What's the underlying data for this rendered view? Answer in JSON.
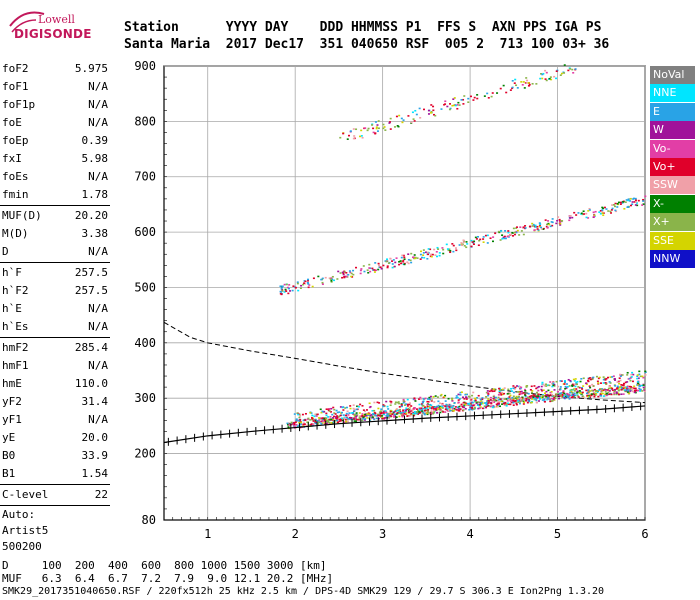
{
  "logo": {
    "line1": "Lowell",
    "line2": "DIGISONDE"
  },
  "header": {
    "row1": "Station      YYYY DAY    DDD HHMMSS P1  FFS S  AXN PPS IGA PS",
    "row2": "Santa Maria  2017 Dec17  351 040650 RSF  005 2  713 100 03+ 36"
  },
  "params_group1": [
    {
      "k": "foF2",
      "v": "5.975"
    },
    {
      "k": "foF1",
      "v": "N/A"
    },
    {
      "k": "foF1p",
      "v": "N/A"
    },
    {
      "k": "foE",
      "v": "N/A"
    },
    {
      "k": "foEp",
      "v": "0.39"
    },
    {
      "k": "fxI",
      "v": "5.98"
    },
    {
      "k": "foEs",
      "v": "N/A"
    },
    {
      "k": "fmin",
      "v": "1.78"
    }
  ],
  "params_group2": [
    {
      "k": "MUF(D)",
      "v": "20.20"
    },
    {
      "k": "M(D)",
      "v": "3.38"
    },
    {
      "k": "D",
      "v": "N/A"
    }
  ],
  "params_group3": [
    {
      "k": "h`F",
      "v": "257.5"
    },
    {
      "k": "h`F2",
      "v": "257.5"
    },
    {
      "k": "h`E",
      "v": "N/A"
    },
    {
      "k": "h`Es",
      "v": "N/A"
    }
  ],
  "params_group4": [
    {
      "k": "hmF2",
      "v": "285.4"
    },
    {
      "k": "hmF1",
      "v": "N/A"
    },
    {
      "k": "hmE",
      "v": "110.0"
    },
    {
      "k": "yF2",
      "v": "31.4"
    },
    {
      "k": "yF1",
      "v": "N/A"
    },
    {
      "k": "yE",
      "v": "20.0"
    },
    {
      "k": "B0",
      "v": "33.9"
    },
    {
      "k": "B1",
      "v": "1.54"
    }
  ],
  "params_group5": [
    {
      "k": "C-level",
      "v": "22"
    }
  ],
  "auto": {
    "line1": "Auto:",
    "line2": "Artist5",
    "line3": "500200"
  },
  "chart_data": {
    "type": "scatter",
    "xlim": [
      0.5,
      6.0
    ],
    "ylim": [
      80,
      900
    ],
    "x_ticks": [
      "1",
      "2",
      "3",
      "4",
      "5",
      "6"
    ],
    "y_ticks": [
      "80",
      "200",
      "300",
      "400",
      "500",
      "600",
      "700",
      "800",
      "900"
    ],
    "grid": true,
    "legend_position": "right",
    "legend": [
      {
        "name": "NoVal",
        "color": "#808080"
      },
      {
        "name": "NNE",
        "color": "#00e5ff"
      },
      {
        "name": "E",
        "color": "#29a3e6"
      },
      {
        "name": "W",
        "color": "#a0129a"
      },
      {
        "name": "Vo-",
        "color": "#e23ea6"
      },
      {
        "name": "Vo+",
        "color": "#e0002a"
      },
      {
        "name": "SSW",
        "color": "#f0a0a8"
      },
      {
        "name": "X-",
        "color": "#008000"
      },
      {
        "name": "X+",
        "color": "#8ab44a"
      },
      {
        "name": "SSE",
        "color": "#d4d400"
      },
      {
        "name": "NNW",
        "color": "#1010c8"
      }
    ],
    "profile_curve": [
      [
        0.5,
        220
      ],
      [
        1.0,
        232
      ],
      [
        1.5,
        240
      ],
      [
        2.0,
        247
      ],
      [
        2.5,
        254
      ],
      [
        3.0,
        259
      ],
      [
        3.5,
        264
      ],
      [
        4.0,
        268
      ],
      [
        4.5,
        272
      ],
      [
        5.0,
        276
      ],
      [
        5.5,
        280
      ],
      [
        6.0,
        286
      ]
    ],
    "dashed_curve": [
      [
        0.5,
        437
      ],
      [
        0.8,
        410
      ],
      [
        1.0,
        400
      ],
      [
        1.5,
        385
      ],
      [
        2.0,
        372
      ],
      [
        2.5,
        358
      ],
      [
        3.0,
        345
      ],
      [
        3.5,
        334
      ],
      [
        4.0,
        322
      ],
      [
        4.5,
        312
      ],
      [
        5.0,
        303
      ],
      [
        5.5,
        297
      ],
      [
        6.0,
        292
      ]
    ],
    "traces": [
      {
        "name": "F2-o",
        "x0": 1.9,
        "x1": 6.0,
        "y0": 253,
        "y1": 320
      },
      {
        "name": "F2-spread",
        "x0": 1.95,
        "x1": 6.0,
        "y0": 262,
        "y1": 338
      },
      {
        "name": "2F2",
        "x0": 1.8,
        "x1": 6.0,
        "y0": 495,
        "y1": 660
      },
      {
        "name": "3F2",
        "x0": 2.5,
        "x1": 5.2,
        "y0": 770,
        "y1": 900
      }
    ]
  },
  "bottom": {
    "row1": "D     100  200  400  600  800 1000 1500 3000 [km]",
    "row2": "MUF   6.3  6.4  6.7  7.2  7.9  9.0 12.1 20.2 [MHz]",
    "row3": "SMK29_2017351040650.RSF / 220fx512h 25 kHz 2.5 km / DPS-4D SMK29 129 / 29.7 S 306.3 E Ion2Png 1.3.20"
  }
}
